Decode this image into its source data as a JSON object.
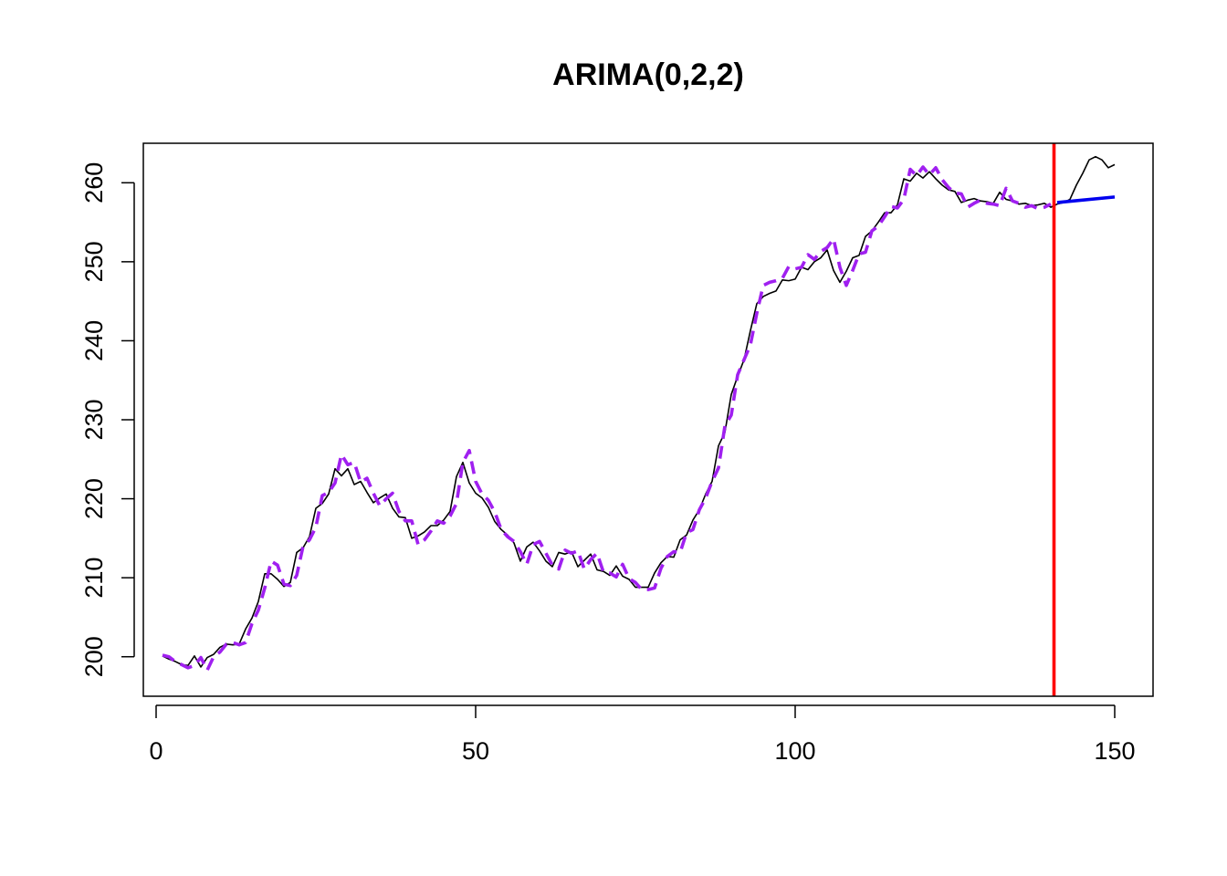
{
  "chart_data": {
    "type": "line",
    "title": "ARIMA(0,2,2)",
    "xlabel": "",
    "ylabel": "",
    "xlim": [
      -2,
      156
    ],
    "ylim": [
      195,
      265
    ],
    "x_ticks": [
      0,
      50,
      100,
      150
    ],
    "y_ticks": [
      200,
      210,
      220,
      230,
      240,
      250,
      260
    ],
    "grid": false,
    "legend": "none",
    "vline": {
      "x": 140.5,
      "color": "#ff0000"
    },
    "series": [
      {
        "style": "solid-thin",
        "color": "#000000",
        "x": [
          1,
          2,
          3,
          4,
          5,
          6,
          7,
          8,
          9,
          10,
          11,
          12,
          13,
          14,
          15,
          16,
          17,
          18,
          19,
          20,
          21,
          22,
          23,
          24,
          25,
          26,
          27,
          28,
          29,
          30,
          31,
          32,
          33,
          34,
          35,
          36,
          37,
          38,
          39,
          40,
          41,
          42,
          43,
          44,
          45,
          46,
          47,
          48,
          49,
          50,
          51,
          52,
          53,
          54,
          55,
          56,
          57,
          58,
          59,
          60,
          61,
          62,
          63,
          64,
          65,
          66,
          67,
          68,
          69,
          70,
          71,
          72,
          73,
          74,
          75,
          76,
          77,
          78,
          79,
          80,
          81,
          82,
          83,
          84,
          85,
          86,
          87,
          88,
          89,
          90,
          91,
          92,
          93,
          94,
          95,
          96,
          97,
          98,
          99,
          100,
          101,
          102,
          103,
          104,
          105,
          106,
          107,
          108,
          109,
          110,
          111,
          112,
          113,
          114,
          115,
          116,
          117,
          118,
          119,
          120,
          121,
          122,
          123,
          124,
          125,
          126,
          127,
          128,
          129,
          130,
          131,
          132,
          133,
          134,
          135,
          136,
          137,
          138,
          139,
          140,
          141,
          142,
          143,
          144,
          145,
          146,
          147,
          148,
          149,
          150
        ],
        "y": [
          200.1,
          199.7,
          199.4,
          199.0,
          198.9,
          200.1,
          198.7,
          199.9,
          200.3,
          201.2,
          201.6,
          201.5,
          201.6,
          203.5,
          204.9,
          207.0,
          210.5,
          210.5,
          209.8,
          208.9,
          209.4,
          213.2,
          213.8,
          215.2,
          218.8,
          219.4,
          220.6,
          223.8,
          222.9,
          223.8,
          221.8,
          222.2,
          220.8,
          219.5,
          220.1,
          220.6,
          218.8,
          217.7,
          217.6,
          215.0,
          215.3,
          215.8,
          216.6,
          216.6,
          217.3,
          218.4,
          222.8,
          224.6,
          222.0,
          220.7,
          220.1,
          218.9,
          217.1,
          216.1,
          215.4,
          214.4,
          212.1,
          213.9,
          214.5,
          213.4,
          212.1,
          211.4,
          213.2,
          213.0,
          213.3,
          211.4,
          212.2,
          213.0,
          211.0,
          210.8,
          210.3,
          211.5,
          210.2,
          209.8,
          208.8,
          208.8,
          208.8,
          210.6,
          211.9,
          212.7,
          212.6,
          214.8,
          215.4,
          217.3,
          218.6,
          220.6,
          222.2,
          226.7,
          228.4,
          233.2,
          235.5,
          237.6,
          241.3,
          244.7,
          245.6,
          246.0,
          246.3,
          247.7,
          247.6,
          247.8,
          249.3,
          249.0,
          250.0,
          250.5,
          251.5,
          248.9,
          247.4,
          248.8,
          250.5,
          250.8,
          253.2,
          253.9,
          255.0,
          256.2,
          256.2,
          257.2,
          260.5,
          260.2,
          261.2,
          260.6,
          261.4,
          260.5,
          259.7,
          259.1,
          258.9,
          257.5,
          257.8,
          258.0,
          257.7,
          257.6,
          257.4,
          258.8,
          257.9,
          257.7,
          257.3,
          257.4,
          257.1,
          257.2,
          257.4,
          256.9,
          257.3,
          257.5,
          257.9,
          259.7,
          261.2,
          262.9,
          263.3,
          262.9,
          261.9,
          262.3
        ]
      },
      {
        "style": "dashed-thick",
        "color": "#a020f0",
        "x": [
          1,
          2,
          3,
          4,
          5,
          6,
          7,
          8,
          9,
          10,
          11,
          12,
          13,
          14,
          15,
          16,
          17,
          18,
          19,
          20,
          21,
          22,
          23,
          24,
          25,
          26,
          27,
          28,
          29,
          30,
          31,
          32,
          33,
          34,
          35,
          36,
          37,
          38,
          39,
          40,
          41,
          42,
          43,
          44,
          45,
          46,
          47,
          48,
          49,
          50,
          51,
          52,
          53,
          54,
          55,
          56,
          57,
          58,
          59,
          60,
          61,
          62,
          63,
          64,
          65,
          66,
          67,
          68,
          69,
          70,
          71,
          72,
          73,
          74,
          75,
          76,
          77,
          78,
          79,
          80,
          81,
          82,
          83,
          84,
          85,
          86,
          87,
          88,
          89,
          90,
          91,
          92,
          93,
          94,
          95,
          96,
          97,
          98,
          99,
          100,
          101,
          102,
          103,
          104,
          105,
          106,
          107,
          108,
          109,
          110,
          111,
          112,
          113,
          114,
          115,
          116,
          117,
          118,
          119,
          120,
          121,
          122,
          123,
          124,
          125,
          126,
          127,
          128,
          129,
          130,
          131,
          132,
          133,
          134,
          135,
          136,
          137,
          138,
          139,
          140
        ],
        "y": [
          200.2,
          200.0,
          199.4,
          199.0,
          198.6,
          198.9,
          199.9,
          198.3,
          200.0,
          200.6,
          201.6,
          201.8,
          201.5,
          201.8,
          204.2,
          205.9,
          208.7,
          212.1,
          211.6,
          209.2,
          209.0,
          210.3,
          214.0,
          214.8,
          216.4,
          220.4,
          220.8,
          222.0,
          225.6,
          224.3,
          224.6,
          222.1,
          222.6,
          220.7,
          219.1,
          220.0,
          220.7,
          218.4,
          217.2,
          217.2,
          214.2,
          214.8,
          215.9,
          217.2,
          216.9,
          217.8,
          219.4,
          224.6,
          226.1,
          222.2,
          220.6,
          219.8,
          218.3,
          216.1,
          215.2,
          214.6,
          213.3,
          211.7,
          214.2,
          214.6,
          213.1,
          211.6,
          211.1,
          213.5,
          213.1,
          213.4,
          211.1,
          212.3,
          213.1,
          210.7,
          210.6,
          210.1,
          211.7,
          209.9,
          209.4,
          208.5,
          208.5,
          208.7,
          211.2,
          212.7,
          213.3,
          213.2,
          215.7,
          216.1,
          218.6,
          220.1,
          222.2,
          223.9,
          229.2,
          230.6,
          235.7,
          237.6,
          239.5,
          243.5,
          247.0,
          247.4,
          247.6,
          247.9,
          249.4,
          249.1,
          249.3,
          250.9,
          250.3,
          251.3,
          251.8,
          252.9,
          249.3,
          247.0,
          248.9,
          251.0,
          251.2,
          253.9,
          254.5,
          255.7,
          257.0,
          256.8,
          257.9,
          261.7,
          260.9,
          262.0,
          261.0,
          261.9,
          260.4,
          259.4,
          258.7,
          258.6,
          256.9,
          257.4,
          257.8,
          257.4,
          257.3,
          257.1,
          259.3,
          257.7,
          257.4,
          256.9,
          257.1,
          256.7,
          256.9,
          257.3
        ]
      },
      {
        "style": "solid-thick",
        "color": "#0000ee",
        "x": [
          141,
          150
        ],
        "y": [
          257.5,
          258.2
        ]
      }
    ]
  }
}
